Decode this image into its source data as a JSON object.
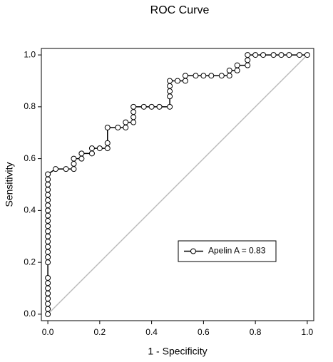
{
  "chart_data": {
    "type": "line",
    "title": "ROC Curve",
    "x_label": "1 - Specificity",
    "y_label": "Sensitivity",
    "xlim": [
      -0.025,
      1.025
    ],
    "ylim": [
      -0.025,
      1.025
    ],
    "xticks": [
      {
        "value": 0,
        "label": "0.0"
      },
      0.2,
      0.4,
      0.6,
      0.8,
      {
        "value": 1,
        "label": "1.0"
      }
    ],
    "yticks": [
      {
        "value": 0,
        "label": "0.0"
      },
      0.2,
      0.4,
      0.6,
      0.8,
      {
        "value": 1,
        "label": "1.0"
      }
    ],
    "legend_position": "lower right",
    "reference_line": {
      "x": [
        0,
        1
      ],
      "y": [
        0,
        1
      ],
      "color": "#bbbbbb"
    },
    "series": [
      {
        "name": "Apelin A = 0.83",
        "color": "#000000",
        "x": [
          0,
          0,
          0,
          0,
          0,
          0,
          0,
          0,
          0,
          0,
          0,
          0,
          0,
          0,
          0,
          0,
          0,
          0,
          0,
          0,
          0,
          0,
          0,
          0,
          0,
          0,
          0.03,
          0.07,
          0.1,
          0.1,
          0.1,
          0.13,
          0.13,
          0.17,
          0.17,
          0.2,
          0.23,
          0.23,
          0.23,
          0.27,
          0.3,
          0.3,
          0.33,
          0.33,
          0.33,
          0.33,
          0.37,
          0.4,
          0.43,
          0.47,
          0.47,
          0.47,
          0.47,
          0.47,
          0.5,
          0.53,
          0.53,
          0.57,
          0.6,
          0.63,
          0.67,
          0.7,
          0.7,
          0.73,
          0.73,
          0.77,
          0.77,
          0.77,
          0.8,
          0.83,
          0.87,
          0.9,
          0.93,
          0.97,
          1
        ],
        "y": [
          0,
          0.02,
          0.04,
          0.06,
          0.08,
          0.1,
          0.12,
          0.14,
          0.2,
          0.22,
          0.24,
          0.26,
          0.28,
          0.3,
          0.32,
          0.34,
          0.36,
          0.38,
          0.4,
          0.42,
          0.44,
          0.46,
          0.48,
          0.5,
          0.52,
          0.54,
          0.56,
          0.56,
          0.56,
          0.58,
          0.6,
          0.6,
          0.62,
          0.62,
          0.64,
          0.64,
          0.64,
          0.66,
          0.72,
          0.72,
          0.72,
          0.74,
          0.74,
          0.76,
          0.78,
          0.8,
          0.8,
          0.8,
          0.8,
          0.8,
          0.84,
          0.86,
          0.88,
          0.9,
          0.9,
          0.9,
          0.92,
          0.92,
          0.92,
          0.92,
          0.92,
          0.92,
          0.94,
          0.94,
          0.96,
          0.96,
          0.98,
          1,
          1,
          1,
          1,
          1,
          1,
          1,
          1
        ]
      }
    ]
  }
}
